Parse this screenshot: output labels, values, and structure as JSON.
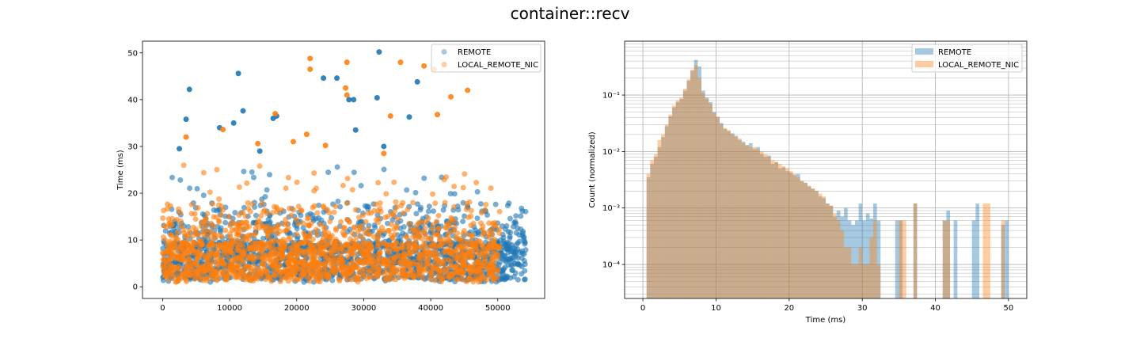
{
  "figure": {
    "title": "container::recv"
  },
  "colors": {
    "remote": "#1f77b4",
    "local": "#ff7f0e",
    "grid": "#b0b0b0",
    "axis": "#000000"
  },
  "chart_data": [
    {
      "type": "scatter",
      "title": "",
      "xlabel": "",
      "ylabel": "Time (ms)",
      "xlim": [
        -3000,
        57000
      ],
      "ylim": [
        -2.5,
        52.5
      ],
      "xticks": [
        0,
        10000,
        20000,
        30000,
        40000,
        50000
      ],
      "xtick_labels": [
        "0",
        "10000",
        "20000",
        "30000",
        "40000",
        "50000"
      ],
      "yticks": [
        0,
        10,
        20,
        30,
        40,
        50
      ],
      "ytick_labels": [
        "0",
        "10",
        "20",
        "30",
        "40",
        "50"
      ],
      "grid": false,
      "legend": "top-right",
      "series": [
        {
          "name": "REMOTE",
          "color": "#1f77b4",
          "count_estimate": 54200,
          "x_range": [
            0,
            54200
          ],
          "typical_range_ms": [
            1,
            15
          ],
          "outliers": [
            {
              "x": 3500,
              "y": 35.8
            },
            {
              "x": 4000,
              "y": 42.2
            },
            {
              "x": 11300,
              "y": 45.6
            },
            {
              "x": 12000,
              "y": 37.6
            },
            {
              "x": 10600,
              "y": 35.0
            },
            {
              "x": 8500,
              "y": 34.0
            },
            {
              "x": 16500,
              "y": 36.0
            },
            {
              "x": 17000,
              "y": 36.5
            },
            {
              "x": 24000,
              "y": 44.6
            },
            {
              "x": 26000,
              "y": 44.6
            },
            {
              "x": 28500,
              "y": 40.0
            },
            {
              "x": 27800,
              "y": 40.0
            },
            {
              "x": 32300,
              "y": 50.2
            },
            {
              "x": 32000,
              "y": 40.4
            },
            {
              "x": 38000,
              "y": 43.8
            },
            {
              "x": 36800,
              "y": 36.3
            },
            {
              "x": 28800,
              "y": 33.5
            },
            {
              "x": 33000,
              "y": 30.0
            },
            {
              "x": 2500,
              "y": 29.5
            },
            {
              "x": 14500,
              "y": 29.0
            }
          ]
        },
        {
          "name": "LOCAL_REMOTE_NIC",
          "color": "#ff7f0e",
          "count_estimate": 50300,
          "x_range": [
            0,
            50300
          ],
          "typical_range_ms": [
            1,
            15
          ],
          "outliers": [
            {
              "x": 22000,
              "y": 48.8
            },
            {
              "x": 27500,
              "y": 48.0
            },
            {
              "x": 22000,
              "y": 46.5
            },
            {
              "x": 39000,
              "y": 47.2
            },
            {
              "x": 27300,
              "y": 42.5
            },
            {
              "x": 40500,
              "y": 46.5
            },
            {
              "x": 45500,
              "y": 42.0
            },
            {
              "x": 35500,
              "y": 48.0
            },
            {
              "x": 16800,
              "y": 37.0
            },
            {
              "x": 34000,
              "y": 36.5
            },
            {
              "x": 43000,
              "y": 40.6
            },
            {
              "x": 41000,
              "y": 36.8
            },
            {
              "x": 27500,
              "y": 41.0
            },
            {
              "x": 9000,
              "y": 33.6
            },
            {
              "x": 21500,
              "y": 32.6
            },
            {
              "x": 3500,
              "y": 32.0
            },
            {
              "x": 14200,
              "y": 30.6
            },
            {
              "x": 19500,
              "y": 31.0
            },
            {
              "x": 24300,
              "y": 30.2
            },
            {
              "x": 33000,
              "y": 28.5
            }
          ]
        }
      ]
    },
    {
      "type": "bar",
      "subtype": "histogram",
      "title": "",
      "xlabel": "Time (ms)",
      "ylabel": "Count (normalized)",
      "xlim": [
        -2.5,
        52.5
      ],
      "ylim": [
        2.5e-05,
        0.9
      ],
      "yscale": "log",
      "xticks": [
        0,
        10,
        20,
        30,
        40,
        50
      ],
      "xtick_labels": [
        "0",
        "10",
        "20",
        "30",
        "40",
        "50"
      ],
      "yticks": [
        0.0001,
        0.001,
        0.01,
        0.1
      ],
      "ytick_labels": [
        "10⁻⁴",
        "10⁻³",
        "10⁻²",
        "10⁻¹"
      ],
      "grid": true,
      "legend": "top-right",
      "bin_width": 0.5,
      "bins_start": [
        0.5,
        1.0,
        1.5,
        2.0,
        2.5,
        3.0,
        3.5,
        4.0,
        4.5,
        5.0,
        5.5,
        6.0,
        6.5,
        7.0,
        7.5,
        8.0,
        8.5,
        9.0,
        9.5,
        10.0,
        10.5,
        11.0,
        11.5,
        12.0,
        12.5,
        13.0,
        13.5,
        14.0,
        14.5,
        15.0,
        15.5,
        16.0,
        16.5,
        17.0,
        17.5,
        18.0,
        18.5,
        19.0,
        19.5,
        20.0,
        20.5,
        21.0,
        21.5,
        22.0,
        22.5,
        23.0,
        23.5,
        24.0,
        24.5,
        25.0,
        25.5,
        26.0,
        26.5,
        27.0,
        27.5,
        28.0,
        28.5,
        29.0,
        29.5,
        30.0,
        30.5,
        31.0,
        31.5,
        32.0,
        32.5,
        33.0,
        33.5,
        34.0,
        34.5,
        35.0,
        35.5,
        36.0,
        36.5,
        37.0,
        37.5,
        38.0,
        38.5,
        39.0,
        39.5,
        40.0,
        40.5,
        41.0,
        41.5,
        42.0,
        42.5,
        43.0,
        43.5,
        44.0,
        44.5,
        45.0,
        45.5,
        46.0,
        46.5,
        47.0,
        47.5,
        48.0,
        48.5,
        49.0,
        49.5
      ],
      "series": [
        {
          "name": "REMOTE",
          "color": "#1f77b4",
          "alpha": 0.4,
          "values": [
            0.0035,
            0.006,
            0.008,
            0.012,
            0.018,
            0.028,
            0.042,
            0.06,
            0.075,
            0.085,
            0.12,
            0.18,
            0.27,
            0.42,
            0.32,
            0.12,
            0.09,
            0.075,
            0.05,
            0.04,
            0.032,
            0.025,
            0.023,
            0.021,
            0.019,
            0.016,
            0.015,
            0.013,
            0.014,
            0.011,
            0.012,
            0.009,
            0.008,
            0.0085,
            0.006,
            0.0065,
            0.005,
            0.0052,
            0.0045,
            0.0042,
            0.0038,
            0.004,
            0.003,
            0.0028,
            0.0024,
            0.0022,
            0.002,
            0.0016,
            0.0015,
            0.0012,
            0.0011,
            0.0007,
            0.0009,
            0.0007,
            0.001,
            0.0006,
            0.0005,
            0.0006,
            0.0012,
            0.0006,
            0.0008,
            0.00065,
            0.0012,
            0.0006,
            0,
            0,
            0,
            0,
            0.0006,
            0.0006,
            0,
            0,
            0,
            0.0012,
            0,
            0,
            0,
            0,
            0,
            0,
            0,
            0.0006,
            0.0009,
            0,
            0.0006,
            0,
            0,
            0,
            0,
            0.0006,
            0.0012,
            0,
            0,
            0,
            0,
            0,
            0,
            0.0005,
            0.0006
          ]
        },
        {
          "name": "LOCAL_REMOTE_NIC",
          "color": "#ff7f0e",
          "alpha": 0.4,
          "values": [
            0.004,
            0.007,
            0.009,
            0.016,
            0.02,
            0.03,
            0.045,
            0.065,
            0.08,
            0.09,
            0.13,
            0.19,
            0.28,
            0.34,
            0.2,
            0.11,
            0.085,
            0.07,
            0.048,
            0.042,
            0.03,
            0.026,
            0.024,
            0.02,
            0.018,
            0.017,
            0.014,
            0.013,
            0.012,
            0.012,
            0.011,
            0.01,
            0.009,
            0.008,
            0.007,
            0.0065,
            0.006,
            0.0055,
            0.005,
            0.0045,
            0.004,
            0.0035,
            0.003,
            0.0028,
            0.0025,
            0.0022,
            0.002,
            0.0018,
            0.0016,
            0.0012,
            0.0011,
            0.0008,
            0.0006,
            0.0004,
            0.0002,
            0.0002,
            0.0001,
            0.0001,
            0.0002,
            0.0001,
            0.0001,
            0.0003,
            0.0006,
            0.0001,
            0,
            0,
            0,
            0,
            0,
            0.0006,
            0.0006,
            0,
            0,
            0.0012,
            0,
            0,
            0,
            0,
            0,
            0,
            0,
            0.0006,
            0.0006,
            0,
            0,
            0,
            0,
            0,
            0,
            0,
            0,
            0,
            0.0012,
            0.0012,
            0,
            0,
            0,
            0.0006,
            0
          ]
        }
      ]
    }
  ]
}
